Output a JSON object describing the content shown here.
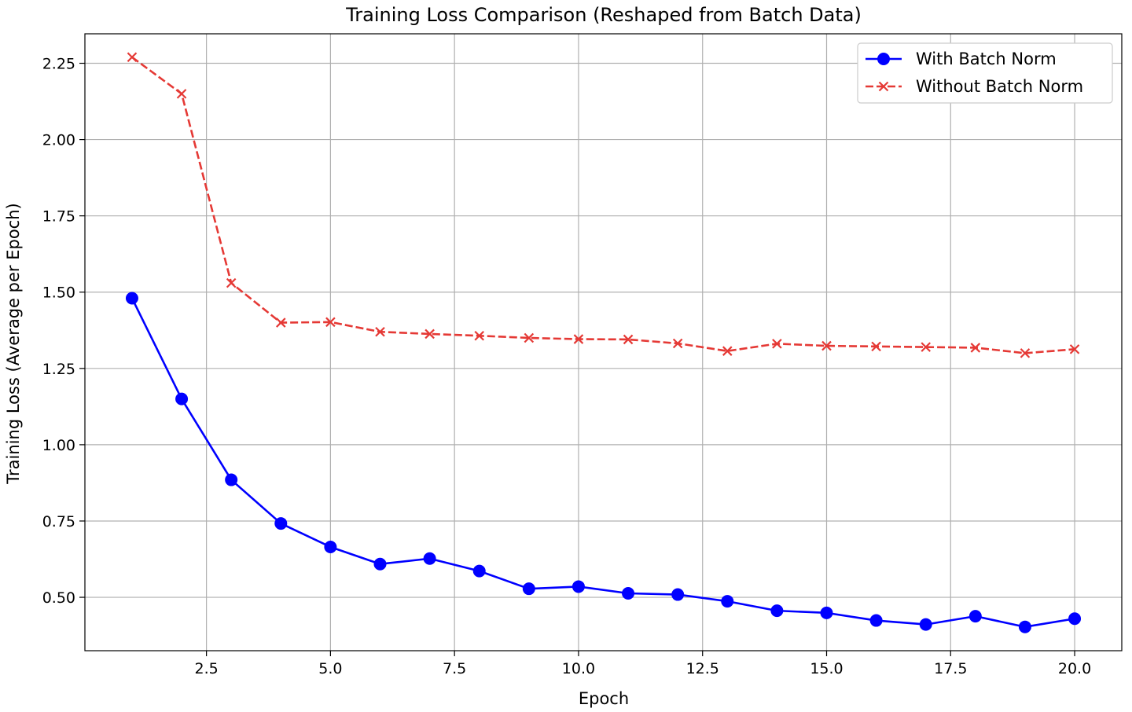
{
  "chart_data": {
    "type": "line",
    "title": "Training Loss Comparison (Reshaped from Batch Data)",
    "xlabel": "Epoch",
    "ylabel": "Training Loss (Average per Epoch)",
    "xlim": [
      0.05,
      20.95
    ],
    "ylim": [
      0.325,
      2.3466
    ],
    "x_ticks": [
      2.5,
      5.0,
      7.5,
      10.0,
      12.5,
      15.0,
      17.5,
      20.0
    ],
    "x_tick_labels": [
      "2.5",
      "5.0",
      "7.5",
      "10.0",
      "12.5",
      "15.0",
      "17.5",
      "20.0"
    ],
    "y_ticks": [
      0.5,
      0.75,
      1.0,
      1.25,
      1.5,
      1.75,
      2.0,
      2.25
    ],
    "y_tick_labels": [
      "0.50",
      "0.75",
      "1.00",
      "1.25",
      "1.50",
      "1.75",
      "2.00",
      "2.25"
    ],
    "grid": true,
    "legend_position": "top-right",
    "x": [
      1,
      2,
      3,
      4,
      5,
      6,
      7,
      8,
      9,
      10,
      11,
      12,
      13,
      14,
      15,
      16,
      17,
      18,
      19,
      20
    ],
    "series": [
      {
        "name": "With Batch Norm",
        "color": "#0000ff",
        "line_style": "solid",
        "marker": "circle",
        "values": [
          1.48,
          1.15,
          0.885,
          0.742,
          0.665,
          0.609,
          0.627,
          0.586,
          0.528,
          0.535,
          0.513,
          0.509,
          0.487,
          0.456,
          0.449,
          0.424,
          0.411,
          0.438,
          0.403,
          0.43
        ]
      },
      {
        "name": "Without Batch Norm",
        "color": "#e53935",
        "line_style": "dashed",
        "marker": "x",
        "values": [
          2.27,
          2.15,
          1.53,
          1.4,
          1.402,
          1.37,
          1.363,
          1.357,
          1.35,
          1.346,
          1.345,
          1.332,
          1.307,
          1.331,
          1.324,
          1.322,
          1.32,
          1.318,
          1.3,
          1.313
        ]
      }
    ]
  }
}
